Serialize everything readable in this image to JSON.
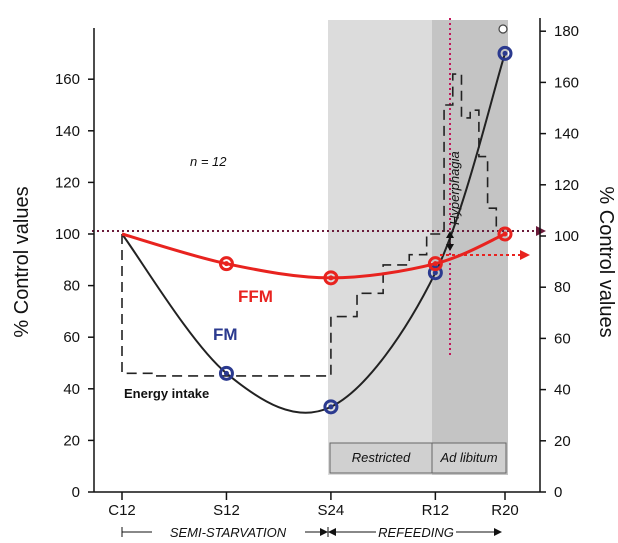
{
  "chart_data": {
    "type": "line",
    "ylabel_left": "% Control values",
    "ylabel_right": "% Control values",
    "ylim_left": [
      0,
      170
    ],
    "ylim_right": [
      0,
      180
    ],
    "yticks_left": [
      "0",
      "20",
      "40",
      "60",
      "80",
      "100",
      "120",
      "140",
      "160"
    ],
    "yticks_right": [
      "0",
      "20",
      "40",
      "60",
      "80",
      "100",
      "120",
      "140",
      "160",
      "180"
    ],
    "categories": [
      "C12",
      "S12",
      "S24",
      "R12",
      "R20"
    ],
    "x_positions": [
      0,
      12,
      24,
      36,
      44
    ],
    "series": [
      {
        "name": "FFM",
        "color": "#e8231f",
        "values": [
          100,
          88.5,
          83,
          88.5,
          100
        ]
      },
      {
        "name": "FM",
        "color": "#2b3a8f",
        "values": [
          100,
          46,
          33,
          85,
          170
        ]
      }
    ],
    "energy_intake": {
      "label": "Energy intake",
      "points": [
        [
          0,
          100
        ],
        [
          0,
          46
        ],
        [
          4,
          46
        ],
        [
          4,
          45
        ],
        [
          24,
          45
        ],
        [
          24,
          68
        ],
        [
          27,
          68
        ],
        [
          27,
          77
        ],
        [
          30,
          77
        ],
        [
          30,
          88
        ],
        [
          33,
          88
        ],
        [
          33,
          92
        ],
        [
          35,
          92
        ],
        [
          35,
          100
        ],
        [
          37,
          100
        ],
        [
          37,
          150
        ],
        [
          38,
          150
        ],
        [
          38,
          162
        ],
        [
          39,
          162
        ],
        [
          39,
          145
        ],
        [
          40,
          145
        ],
        [
          40,
          148
        ],
        [
          41,
          148
        ],
        [
          41,
          130
        ],
        [
          42,
          130
        ],
        [
          42,
          110
        ],
        [
          43,
          110
        ],
        [
          43,
          102
        ],
        [
          44,
          102
        ]
      ]
    },
    "annotations": {
      "n": "n = 12",
      "hyperphagia": "Hyperphagia",
      "phase_restricted": "Restricted",
      "phase_ad_libitum": "Ad libitum",
      "period_semi_starvation": "SEMI-STARVATION",
      "period_refeeding": "REFEEDING"
    },
    "colors": {
      "shade_restricted": "#dcdcdc",
      "shade_ad_libitum": "#c4c4c4",
      "reference_line": "#6a1b3a",
      "hyperphagia_line": "#c2185b",
      "arrow": "#e8231f"
    }
  }
}
